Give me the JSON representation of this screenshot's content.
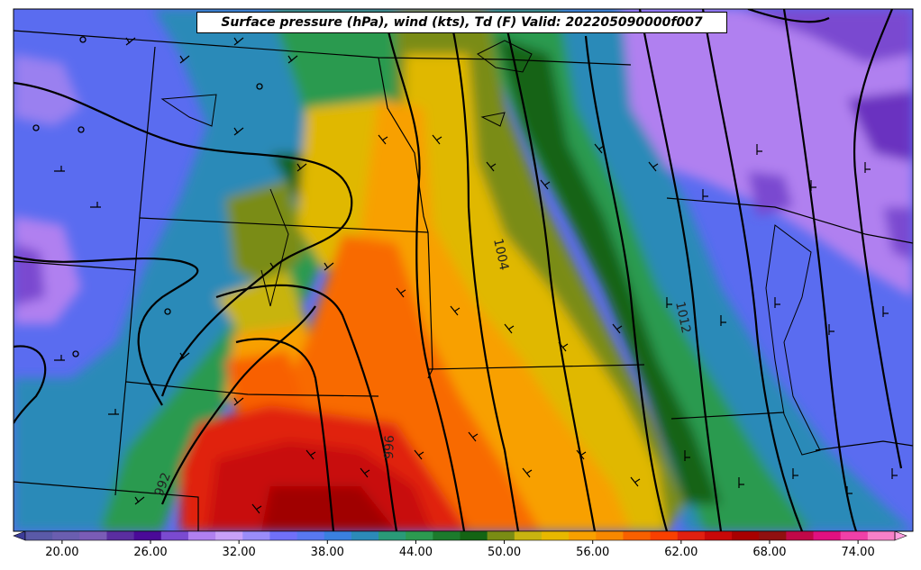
{
  "title": "Surface pressure (hPa), wind (kts), Td (F) Valid: 202205090000f007",
  "colorbar": {
    "ticks": [
      "20.00",
      "26.00",
      "32.00",
      "38.00",
      "44.00",
      "50.00",
      "56.00",
      "62.00",
      "68.00",
      "74.00"
    ],
    "bin_colors": [
      "#5a5aa8",
      "#6a5eb0",
      "#7a5cb6",
      "#5a2ea0",
      "#4a0a98",
      "#7a4ad0",
      "#b080f0",
      "#c8a0f8",
      "#9a8cf8",
      "#7070f8",
      "#5878f0",
      "#3a80e0",
      "#2c8ab8",
      "#2a9a78",
      "#2c9a50",
      "#1c7a2c",
      "#146414",
      "#7a8c14",
      "#c8b410",
      "#e8b800",
      "#f8a000",
      "#f88800",
      "#f86000",
      "#f84000",
      "#e02010",
      "#c80808",
      "#a80000",
      "#901010",
      "#c00848",
      "#e01080",
      "#f040a8",
      "#f880c8"
    ]
  },
  "contour_labels": [
    "1004",
    "1012",
    "996",
    "992"
  ],
  "legend": {
    "variable": "Td (F)",
    "min": 20,
    "max": 74
  }
}
